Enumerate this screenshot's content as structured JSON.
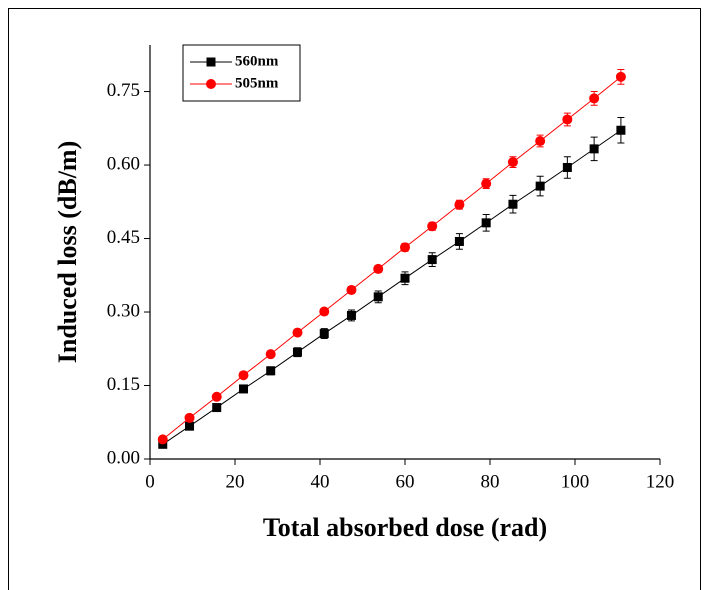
{
  "chart_data": {
    "type": "line",
    "x_label": "Total absorbed dose (rad)",
    "y_label": "Induced loss (dB/m)",
    "x": [
      3,
      9.3,
      15.7,
      22,
      28.4,
      34.7,
      41,
      47.4,
      53.7,
      60,
      66.4,
      72.8,
      79.1,
      85.4,
      91.8,
      98.2,
      104.5,
      110.8
    ],
    "series": [
      {
        "name": "560nm",
        "color": "#000000",
        "marker": "square",
        "values": [
          0.03,
          0.067,
          0.105,
          0.143,
          0.18,
          0.218,
          0.256,
          0.293,
          0.331,
          0.369,
          0.407,
          0.444,
          0.482,
          0.52,
          0.557,
          0.595,
          0.633,
          0.671
        ],
        "errors": [
          0.004,
          0.005,
          0.006,
          0.007,
          0.008,
          0.009,
          0.01,
          0.011,
          0.012,
          0.013,
          0.014,
          0.016,
          0.017,
          0.018,
          0.02,
          0.022,
          0.024,
          0.026
        ]
      },
      {
        "name": "505nm",
        "color": "#ff0000",
        "marker": "circle",
        "values": [
          0.04,
          0.084,
          0.127,
          0.171,
          0.214,
          0.258,
          0.301,
          0.345,
          0.388,
          0.432,
          0.475,
          0.519,
          0.562,
          0.606,
          0.649,
          0.693,
          0.736,
          0.78
        ],
        "errors": [
          0.003,
          0.004,
          0.004,
          0.005,
          0.005,
          0.006,
          0.006,
          0.007,
          0.007,
          0.008,
          0.008,
          0.009,
          0.01,
          0.011,
          0.012,
          0.013,
          0.014,
          0.015
        ]
      }
    ],
    "xlim": [
      0,
      120
    ],
    "xticks": [
      0,
      20,
      40,
      60,
      80,
      100,
      120
    ],
    "ylim": [
      0,
      0.845
    ],
    "yticks": [
      {
        "value": 0,
        "label": "0.00"
      },
      {
        "value": 0.15,
        "label": "0.15"
      },
      {
        "value": 0.3,
        "label": "0.30"
      },
      {
        "value": 0.45,
        "label": "0.45"
      },
      {
        "value": 0.6,
        "label": "0.60"
      },
      {
        "value": 0.75,
        "label": "0.75"
      }
    ],
    "legend": "upper left",
    "grid": false
  }
}
